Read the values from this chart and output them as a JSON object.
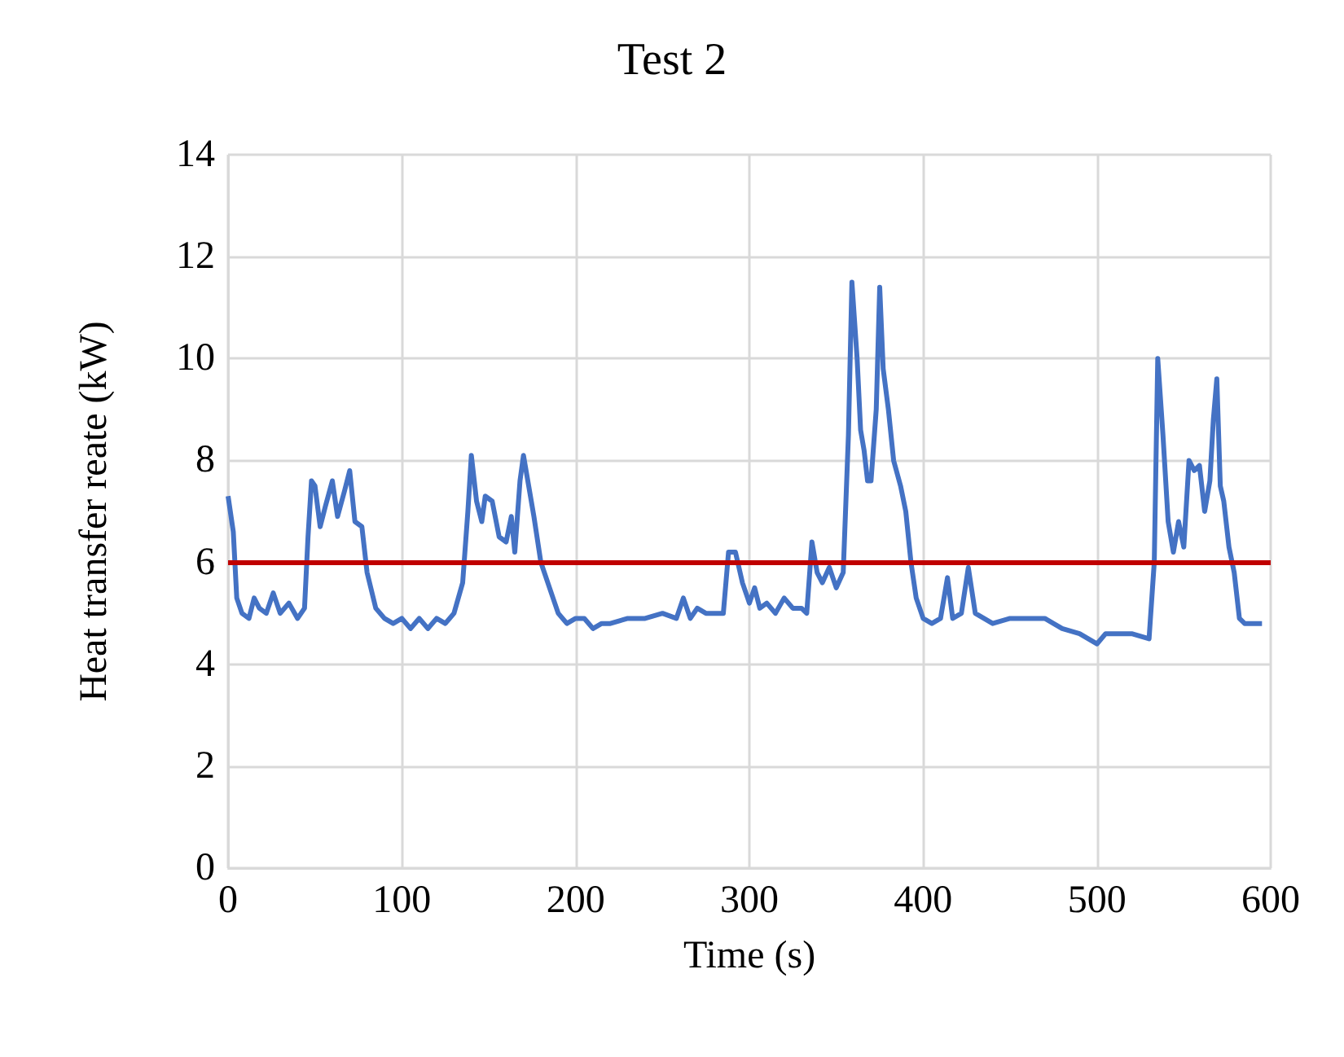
{
  "chart_data": {
    "type": "line",
    "title": "Test 2",
    "xlabel": "Time (s)",
    "ylabel": "Heat transfer reate (kW)",
    "series": [
      {
        "color": "#4472c4",
        "x": [
          0,
          3,
          5,
          8,
          12,
          15,
          18,
          22,
          26,
          30,
          35,
          40,
          44,
          46,
          48,
          50,
          53,
          56,
          60,
          63,
          67,
          70,
          73,
          77,
          80,
          85,
          90,
          95,
          100,
          105,
          110,
          115,
          120,
          125,
          130,
          135,
          138,
          140,
          143,
          146,
          148,
          152,
          156,
          160,
          163,
          165,
          168,
          170,
          173,
          176,
          180,
          185,
          190,
          195,
          200,
          205,
          210,
          215,
          220,
          230,
          240,
          250,
          258,
          262,
          266,
          270,
          275,
          280,
          285,
          288,
          292,
          296,
          300,
          303,
          306,
          310,
          315,
          320,
          325,
          330,
          333,
          336,
          339,
          342,
          346,
          350,
          354,
          357,
          359,
          362,
          364,
          366,
          368,
          370,
          373,
          375,
          377,
          380,
          383,
          387,
          390,
          393,
          396,
          400,
          405,
          410,
          414,
          417,
          422,
          426,
          430,
          435,
          440,
          450,
          460,
          470,
          480,
          490,
          500,
          505,
          510,
          520,
          530,
          533,
          535,
          538,
          541,
          544,
          547,
          550,
          553,
          556,
          559,
          562,
          565,
          567,
          569,
          571,
          573,
          576,
          579,
          582,
          585,
          590,
          595
        ],
        "values": [
          7.3,
          6.6,
          5.3,
          5.0,
          4.9,
          5.3,
          5.1,
          5.0,
          5.4,
          5.0,
          5.2,
          4.9,
          5.1,
          6.5,
          7.6,
          7.5,
          6.7,
          7.1,
          7.6,
          6.9,
          7.4,
          7.8,
          6.8,
          6.7,
          5.8,
          5.1,
          4.9,
          4.8,
          4.9,
          4.7,
          4.9,
          4.7,
          4.9,
          4.8,
          5.0,
          5.6,
          7.0,
          8.1,
          7.2,
          6.8,
          7.3,
          7.2,
          6.5,
          6.4,
          6.9,
          6.2,
          7.6,
          8.1,
          7.5,
          6.9,
          6.0,
          5.5,
          5.0,
          4.8,
          4.9,
          4.9,
          4.7,
          4.8,
          4.8,
          4.9,
          4.9,
          5.0,
          4.9,
          5.3,
          4.9,
          5.1,
          5.0,
          5.0,
          5.0,
          6.2,
          6.2,
          5.6,
          5.2,
          5.5,
          5.1,
          5.2,
          5.0,
          5.3,
          5.1,
          5.1,
          5.0,
          6.4,
          5.8,
          5.6,
          5.9,
          5.5,
          5.8,
          8.5,
          11.5,
          10.0,
          8.6,
          8.2,
          7.6,
          7.6,
          9.0,
          11.4,
          9.8,
          9.0,
          8.0,
          7.5,
          7.0,
          6.0,
          5.3,
          4.9,
          4.8,
          4.9,
          5.7,
          4.9,
          5.0,
          5.9,
          5.0,
          4.9,
          4.8,
          4.9,
          4.9,
          4.9,
          4.7,
          4.6,
          4.4,
          4.6,
          4.6,
          4.6,
          4.5,
          6.0,
          10.0,
          8.5,
          6.8,
          6.2,
          6.8,
          6.3,
          8.0,
          7.8,
          7.9,
          7.0,
          7.6,
          8.8,
          9.6,
          7.5,
          7.2,
          6.3,
          5.8,
          4.9,
          4.8,
          4.8,
          4.8
        ]
      }
    ],
    "xlim": [
      0,
      600
    ],
    "xticks": [
      0,
      100,
      200,
      300,
      400,
      500,
      600
    ],
    "ylim": [
      0,
      14
    ],
    "yticks": [
      0,
      2,
      4,
      6,
      8,
      10,
      12,
      14
    ],
    "ref_lines": [
      {
        "axis": "y",
        "value": 6,
        "color": "#c00000"
      }
    ],
    "grid": true,
    "marker": "none",
    "line_style": "solid"
  }
}
